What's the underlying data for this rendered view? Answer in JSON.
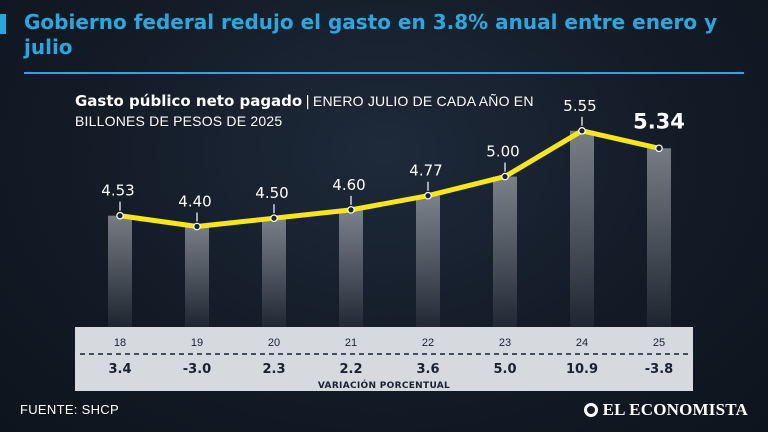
{
  "headline": "Gobierno federal redujo el gasto en 3.8% anual entre enero y julio",
  "chart_title": {
    "bold": "Gasto público neto pagado",
    "separator": "|",
    "subtitle": "ENERO JULIO DE CADA AÑO EN BILLONES DE PESOS DE 2025"
  },
  "source": "FUENTE: SHCP",
  "logo": "EL ECONOMISTA",
  "colors": {
    "accent": "#29a8e0",
    "line": "#f6e61c",
    "background": "#131b27"
  },
  "chart_data": {
    "type": "line",
    "title": "Gasto público neto pagado",
    "subtitle": "ENERO JULIO DE CADA AÑO EN BILLONES DE PESOS DE 2025",
    "categories": [
      "18",
      "19",
      "20",
      "21",
      "22",
      "23",
      "24",
      "25"
    ],
    "values": [
      4.53,
      4.4,
      4.5,
      4.6,
      4.77,
      5.0,
      5.55,
      5.34
    ],
    "value_labels": [
      "4.53",
      "4.40",
      "4.50",
      "4.60",
      "4.77",
      "5.00",
      "5.55",
      "5.34"
    ],
    "variation_label": "VARIACIÓN PORCENTUAL",
    "variation": [
      "3.4",
      "-3.0",
      "2.3",
      "2.2",
      "3.6",
      "5.0",
      "10.9",
      "-3.8"
    ],
    "highlight_index": 7,
    "ylim": [
      4.0,
      5.6
    ]
  }
}
